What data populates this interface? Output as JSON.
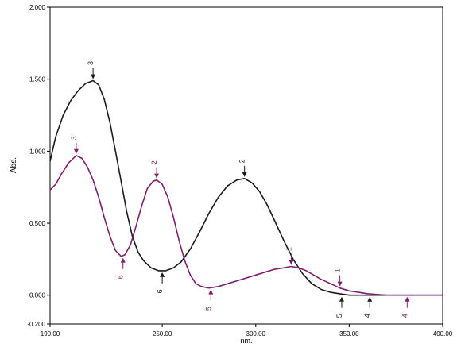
{
  "chart_data": {
    "type": "line",
    "xlabel": "nm.",
    "ylabel": "Abs.",
    "xlim": [
      190.0,
      400.0
    ],
    "ylim": [
      -0.2,
      2.0
    ],
    "x_ticks": [
      {
        "value": 190,
        "label": "190.00"
      },
      {
        "value": 250,
        "label": "250.00"
      },
      {
        "value": 300,
        "label": "300.00"
      },
      {
        "value": 350,
        "label": "350.00"
      },
      {
        "value": 400,
        "label": "400.00"
      }
    ],
    "y_ticks": [
      {
        "value": 2.0,
        "label": "2.000"
      },
      {
        "value": 1.5,
        "label": "1.500"
      },
      {
        "value": 1.0,
        "label": "1.000"
      },
      {
        "value": 0.5,
        "label": "0.500"
      },
      {
        "value": 0.0,
        "label": "0.000"
      },
      {
        "value": -0.2,
        "label": "-0.200"
      }
    ],
    "series": [
      {
        "color": "#1a1a1a",
        "points": [
          [
            190,
            0.93
          ],
          [
            193,
            1.1
          ],
          [
            197,
            1.25
          ],
          [
            201,
            1.35
          ],
          [
            205,
            1.42
          ],
          [
            209,
            1.47
          ],
          [
            213,
            1.49
          ],
          [
            216,
            1.46
          ],
          [
            219,
            1.36
          ],
          [
            222,
            1.2
          ],
          [
            225,
            1.0
          ],
          [
            228,
            0.79
          ],
          [
            231,
            0.58
          ],
          [
            234,
            0.41
          ],
          [
            237,
            0.3
          ],
          [
            240,
            0.24
          ],
          [
            244,
            0.19
          ],
          [
            248,
            0.17
          ],
          [
            252,
            0.17
          ],
          [
            256,
            0.19
          ],
          [
            260,
            0.23
          ],
          [
            265,
            0.32
          ],
          [
            270,
            0.44
          ],
          [
            275,
            0.57
          ],
          [
            280,
            0.68
          ],
          [
            285,
            0.76
          ],
          [
            290,
            0.8
          ],
          [
            294,
            0.81
          ],
          [
            298,
            0.78
          ],
          [
            302,
            0.72
          ],
          [
            306,
            0.63
          ],
          [
            310,
            0.52
          ],
          [
            315,
            0.38
          ],
          [
            320,
            0.25
          ],
          [
            325,
            0.15
          ],
          [
            330,
            0.08
          ],
          [
            335,
            0.04
          ],
          [
            340,
            0.02
          ],
          [
            345,
            0.01
          ],
          [
            350,
            0.0
          ],
          [
            360,
            0.0
          ],
          [
            370,
            0.0
          ],
          [
            380,
            0.0
          ],
          [
            390,
            0.0
          ],
          [
            400,
            0.0
          ]
        ],
        "markers": [
          {
            "label": "3",
            "x": 213,
            "y": 1.49,
            "dir": "down"
          },
          {
            "label": "2",
            "x": 294,
            "y": 0.81,
            "dir": "down"
          },
          {
            "label": "6",
            "x": 250,
            "y": 0.17,
            "dir": "up"
          },
          {
            "label": "5",
            "x": 346,
            "y": 0.0,
            "dir": "up"
          },
          {
            "label": "4",
            "x": 361,
            "y": 0.0,
            "dir": "up"
          }
        ]
      },
      {
        "color": "#7b1f6e",
        "points": [
          [
            190,
            0.73
          ],
          [
            193,
            0.77
          ],
          [
            196,
            0.84
          ],
          [
            200,
            0.92
          ],
          [
            204,
            0.97
          ],
          [
            207,
            0.95
          ],
          [
            210,
            0.89
          ],
          [
            213,
            0.8
          ],
          [
            216,
            0.68
          ],
          [
            219,
            0.54
          ],
          [
            222,
            0.41
          ],
          [
            225,
            0.31
          ],
          [
            228,
            0.27
          ],
          [
            230,
            0.28
          ],
          [
            233,
            0.35
          ],
          [
            236,
            0.48
          ],
          [
            239,
            0.62
          ],
          [
            242,
            0.74
          ],
          [
            245,
            0.79
          ],
          [
            247,
            0.8
          ],
          [
            250,
            0.77
          ],
          [
            253,
            0.68
          ],
          [
            256,
            0.54
          ],
          [
            259,
            0.38
          ],
          [
            262,
            0.24
          ],
          [
            265,
            0.14
          ],
          [
            268,
            0.08
          ],
          [
            271,
            0.06
          ],
          [
            275,
            0.05
          ],
          [
            280,
            0.06
          ],
          [
            285,
            0.08
          ],
          [
            290,
            0.1
          ],
          [
            295,
            0.12
          ],
          [
            300,
            0.14
          ],
          [
            305,
            0.16
          ],
          [
            310,
            0.18
          ],
          [
            315,
            0.19
          ],
          [
            319,
            0.2
          ],
          [
            323,
            0.19
          ],
          [
            327,
            0.17
          ],
          [
            331,
            0.14
          ],
          [
            335,
            0.11
          ],
          [
            340,
            0.08
          ],
          [
            345,
            0.05
          ],
          [
            350,
            0.03
          ],
          [
            355,
            0.02
          ],
          [
            360,
            0.01
          ],
          [
            365,
            0.005
          ],
          [
            370,
            0.0
          ],
          [
            380,
            0.0
          ],
          [
            390,
            0.0
          ],
          [
            400,
            0.0
          ]
        ],
        "markers": [
          {
            "label": "3",
            "x": 204,
            "y": 0.97,
            "dir": "down"
          },
          {
            "label": "2",
            "x": 247,
            "y": 0.8,
            "dir": "down"
          },
          {
            "label": "1",
            "x": 319,
            "y": 0.2,
            "dir": "down"
          },
          {
            "label": "1",
            "x": 345,
            "y": 0.05,
            "dir": "down"
          },
          {
            "label": "6",
            "x": 229,
            "y": 0.27,
            "dir": "up"
          },
          {
            "label": "5",
            "x": 276,
            "y": 0.05,
            "dir": "up"
          },
          {
            "label": "4",
            "x": 381,
            "y": 0.0,
            "dir": "up"
          }
        ]
      }
    ]
  }
}
